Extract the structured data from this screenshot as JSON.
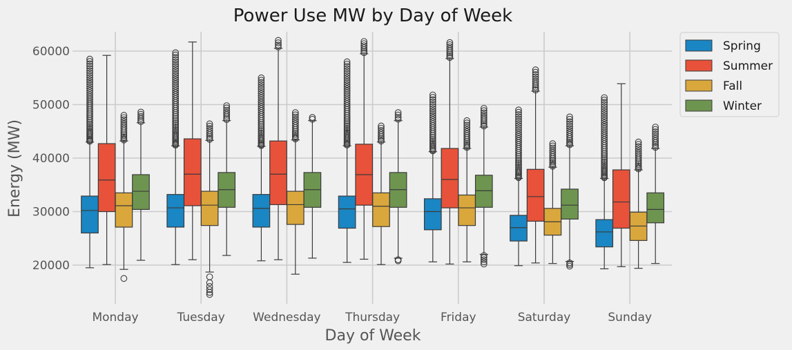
{
  "chart_data": {
    "type": "box",
    "title": "Power Use MW by Day of Week",
    "xlabel": "Day of Week",
    "ylabel": "Energy (MW)",
    "ylim": [
      13000,
      64000
    ],
    "yticks": [
      20000,
      30000,
      40000,
      50000,
      60000
    ],
    "grid": true,
    "legend_position": "outside-top-right",
    "categories": [
      "Monday",
      "Tuesday",
      "Wednesday",
      "Thursday",
      "Friday",
      "Saturday",
      "Sunday"
    ],
    "series": [
      {
        "name": "Spring",
        "color": "#1a86c3",
        "boxes": [
          {
            "whislo": 19500,
            "q1": 26000,
            "med": 30200,
            "q3": 32900,
            "whishi": 43000,
            "fliers_low": [],
            "fliers_high_range": [
              43000,
              58500
            ]
          },
          {
            "whislo": 20100,
            "q1": 27100,
            "med": 30700,
            "q3": 33200,
            "whishi": 42300,
            "fliers_low": [],
            "fliers_high_range": [
              42300,
              59700
            ]
          },
          {
            "whislo": 20800,
            "q1": 27100,
            "med": 30600,
            "q3": 33200,
            "whishi": 42200,
            "fliers_low": [],
            "fliers_high_range": [
              42200,
              55000
            ]
          },
          {
            "whislo": 20500,
            "q1": 26900,
            "med": 30500,
            "q3": 32900,
            "whishi": 42300,
            "fliers_low": [],
            "fliers_high_range": [
              42300,
              58000
            ]
          },
          {
            "whislo": 20600,
            "q1": 26600,
            "med": 30000,
            "q3": 32400,
            "whishi": 41200,
            "fliers_low": [],
            "fliers_high_range": [
              41200,
              51800
            ]
          },
          {
            "whislo": 19900,
            "q1": 24500,
            "med": 27000,
            "q3": 29300,
            "whishi": 36200,
            "fliers_low": [],
            "fliers_high_range": [
              36200,
              49000
            ]
          },
          {
            "whislo": 19300,
            "q1": 23400,
            "med": 26200,
            "q3": 28500,
            "whishi": 36200,
            "fliers_low": [],
            "fliers_high_range": [
              36200,
              51300
            ]
          }
        ]
      },
      {
        "name": "Summer",
        "color": "#e8523a",
        "boxes": [
          {
            "whislo": 20100,
            "q1": 30000,
            "med": 35900,
            "q3": 42700,
            "whishi": 59200,
            "fliers_low": [],
            "fliers_high_range": []
          },
          {
            "whislo": 21000,
            "q1": 31100,
            "med": 37000,
            "q3": 43600,
            "whishi": 61700,
            "fliers_low": [],
            "fliers_high_range": []
          },
          {
            "whislo": 21000,
            "q1": 31300,
            "med": 37000,
            "q3": 43200,
            "whishi": 60500,
            "fliers_low": [],
            "fliers_high_range": [
              60500,
              62000
            ]
          },
          {
            "whislo": 21100,
            "q1": 31200,
            "med": 36900,
            "q3": 42600,
            "whishi": 59500,
            "fliers_low": [],
            "fliers_high_range": [
              59500,
              61800
            ]
          },
          {
            "whislo": 20200,
            "q1": 30700,
            "med": 36000,
            "q3": 41800,
            "whishi": 58600,
            "fliers_low": [],
            "fliers_high_range": [
              58600,
              61600
            ]
          },
          {
            "whislo": 20400,
            "q1": 28200,
            "med": 32800,
            "q3": 37900,
            "whishi": 52500,
            "fliers_low": [],
            "fliers_high_range": [
              52500,
              56500
            ]
          },
          {
            "whislo": 19700,
            "q1": 26900,
            "med": 31800,
            "q3": 37800,
            "whishi": 53900,
            "fliers_low": [],
            "fliers_high_range": []
          }
        ]
      },
      {
        "name": "Fall",
        "color": "#d9a73c",
        "boxes": [
          {
            "whislo": 19200,
            "q1": 27100,
            "med": 31100,
            "q3": 33500,
            "whishi": 43200,
            "fliers_low": [
              17500
            ],
            "fliers_high_range": [
              43200,
              48000
            ]
          },
          {
            "whislo": 18700,
            "q1": 27400,
            "med": 31200,
            "q3": 33800,
            "whishi": 43300,
            "fliers_low": [
              17800,
              16700,
              16000,
              15400,
              14900,
              14500
            ],
            "fliers_high_range": [
              43300,
              46400
            ]
          },
          {
            "whislo": 18300,
            "q1": 27600,
            "med": 31300,
            "q3": 33800,
            "whishi": 43400,
            "fliers_low": [],
            "fliers_high_range": [
              43400,
              48500
            ]
          },
          {
            "whislo": 20100,
            "q1": 27200,
            "med": 31000,
            "q3": 33500,
            "whishi": 43000,
            "fliers_low": [],
            "fliers_high_range": [
              43000,
              46000
            ]
          },
          {
            "whislo": 20600,
            "q1": 27400,
            "med": 30700,
            "q3": 33100,
            "whishi": 41800,
            "fliers_low": [],
            "fliers_high_range": [
              41800,
              47000
            ]
          },
          {
            "whislo": 20300,
            "q1": 25600,
            "med": 28100,
            "q3": 30600,
            "whishi": 38300,
            "fliers_low": [],
            "fliers_high_range": [
              38300,
              42700
            ]
          },
          {
            "whislo": 19400,
            "q1": 24600,
            "med": 27300,
            "q3": 29900,
            "whishi": 37800,
            "fliers_low": [],
            "fliers_high_range": [
              37800,
              43000
            ]
          }
        ]
      },
      {
        "name": "Winter",
        "color": "#6e9550",
        "boxes": [
          {
            "whislo": 20900,
            "q1": 30400,
            "med": 33800,
            "q3": 36900,
            "whishi": 46600,
            "fliers_low": [],
            "fliers_high_range": [
              46600,
              48600
            ]
          },
          {
            "whislo": 21800,
            "q1": 30800,
            "med": 34100,
            "q3": 37300,
            "whishi": 47000,
            "fliers_low": [],
            "fliers_high_range": [
              47000,
              49800
            ]
          },
          {
            "whislo": 21300,
            "q1": 30800,
            "med": 34100,
            "q3": 37300,
            "whishi": 47000,
            "fliers_low": [],
            "fliers_high_range": [
              47000,
              47600
            ]
          },
          {
            "whislo": 21300,
            "q1": 30800,
            "med": 34100,
            "q3": 37300,
            "whishi": 47000,
            "fliers_low": [
              21000,
              20800
            ],
            "fliers_high_range": [
              47000,
              48500
            ]
          },
          {
            "whislo": 22000,
            "q1": 30800,
            "med": 33900,
            "q3": 36800,
            "whishi": 45800,
            "fliers_low": [
              21800,
              21400,
              21000,
              20600,
              20200
            ],
            "fliers_high_range": [
              45800,
              49300
            ]
          },
          {
            "whislo": 20700,
            "q1": 28600,
            "med": 31200,
            "q3": 34200,
            "whishi": 42300,
            "fliers_low": [
              20400,
              20100,
              19800
            ],
            "fliers_high_range": [
              42300,
              47700
            ]
          },
          {
            "whislo": 20300,
            "q1": 27900,
            "med": 30400,
            "q3": 33500,
            "whishi": 41800,
            "fliers_low": [],
            "fliers_high_range": [
              41800,
              45800
            ]
          }
        ]
      }
    ]
  }
}
